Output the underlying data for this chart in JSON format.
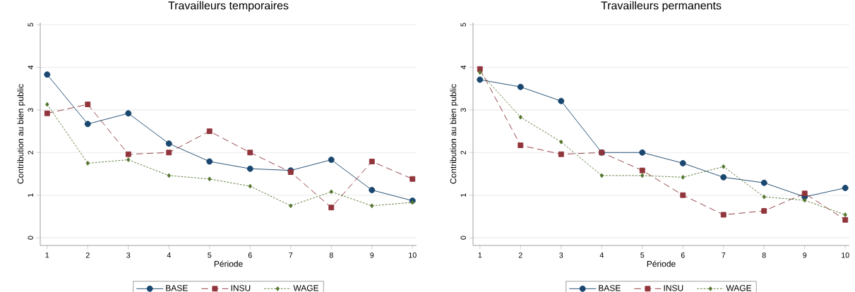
{
  "chart_data": [
    {
      "type": "line",
      "title": "Travailleurs temporaires",
      "xlabel": "Période",
      "ylabel": "Contribution au bien public",
      "x": [
        1,
        2,
        3,
        4,
        5,
        6,
        7,
        8,
        9,
        10
      ],
      "xlim": [
        0.83,
        10.1
      ],
      "ylim": [
        -0.18,
        5.05
      ],
      "xticks": [
        1,
        2,
        3,
        4,
        5,
        6,
        7,
        8,
        9,
        10
      ],
      "yticks": [
        0,
        1,
        2,
        3,
        4,
        5
      ],
      "grid": "y",
      "legend": "bottom",
      "series": [
        {
          "name": "BASE",
          "color": "#1a476f",
          "marker": "circle",
          "line_style": "solid",
          "values": [
            3.83,
            2.67,
            2.92,
            2.21,
            1.79,
            1.62,
            1.58,
            1.83,
            1.12,
            0.87
          ]
        },
        {
          "name": "INSU",
          "color": "#90353b",
          "marker": "square",
          "line_style": "dashed",
          "values": [
            2.92,
            3.13,
            1.96,
            2.0,
            2.5,
            2.0,
            1.54,
            0.71,
            1.79,
            1.38
          ]
        },
        {
          "name": "WAGE",
          "color": "#55752f",
          "marker": "diamond",
          "line_style": "dotted",
          "values": [
            3.13,
            1.75,
            1.83,
            1.46,
            1.38,
            1.21,
            0.75,
            1.08,
            0.75,
            0.83
          ]
        }
      ]
    },
    {
      "type": "line",
      "title": "Travailleurs permanents",
      "xlabel": "Période",
      "ylabel": "Contribution au bien public",
      "x": [
        1,
        2,
        3,
        4,
        5,
        6,
        7,
        8,
        9,
        10
      ],
      "xlim": [
        0.83,
        10.1
      ],
      "ylim": [
        -0.18,
        5.05
      ],
      "xticks": [
        1,
        2,
        3,
        4,
        5,
        6,
        7,
        8,
        9,
        10
      ],
      "yticks": [
        0,
        1,
        2,
        3,
        4,
        5
      ],
      "grid": "y",
      "legend": "bottom",
      "series": [
        {
          "name": "BASE",
          "color": "#1a476f",
          "marker": "circle",
          "line_style": "solid",
          "values": [
            3.71,
            3.54,
            3.21,
            2.0,
            2.0,
            1.75,
            1.42,
            1.29,
            0.96,
            1.17
          ]
        },
        {
          "name": "INSU",
          "color": "#90353b",
          "marker": "square",
          "line_style": "dashed",
          "values": [
            3.96,
            2.17,
            1.96,
            2.0,
            1.58,
            1.0,
            0.54,
            0.63,
            1.04,
            0.42
          ]
        },
        {
          "name": "WAGE",
          "color": "#55752f",
          "marker": "diamond",
          "line_style": "dotted",
          "values": [
            3.88,
            2.83,
            2.25,
            1.46,
            1.46,
            1.42,
            1.67,
            0.96,
            0.88,
            0.54
          ]
        }
      ]
    }
  ]
}
